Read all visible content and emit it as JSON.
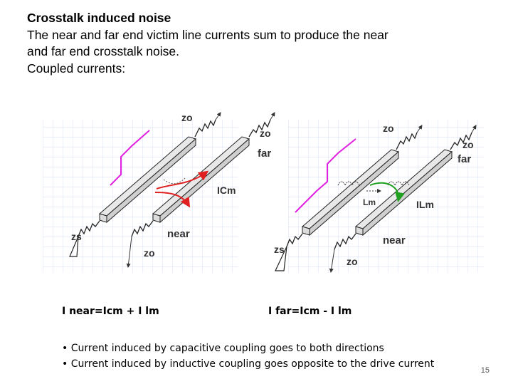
{
  "slide": {
    "heading": "Crosstalk induced noise",
    "line1": "The  near and far end victim line currents sum to produce the near",
    "line2": "and far end crosstalk noise.",
    "line3": "Coupled currents:",
    "page_number": "15"
  },
  "figure": {
    "left": {
      "zo_top": "zo",
      "zo_top2": "zo",
      "far": "far",
      "near": "near",
      "zs": "zs",
      "zo_bottom": "zo",
      "coupling_label": "ICm"
    },
    "right": {
      "zo_top": "zo",
      "zo_top2": "zo",
      "far": "far",
      "near": "near",
      "zs": "zs",
      "zo_bottom": "zo",
      "lm_label": "Lm",
      "coupling_label": "ILm"
    },
    "colors": {
      "drive_pulse": "#e020e0",
      "capacitive_current": "#e02020",
      "inductive_current": "#20a020",
      "grid": "#c8d4f0"
    }
  },
  "equations": {
    "near": "I near=Icm + I lm",
    "far": "I far=Icm - I lm"
  },
  "bullets": [
    "Current induced by capacitive coupling goes to both directions",
    "Current induced by inductive coupling goes opposite to the drive current"
  ]
}
